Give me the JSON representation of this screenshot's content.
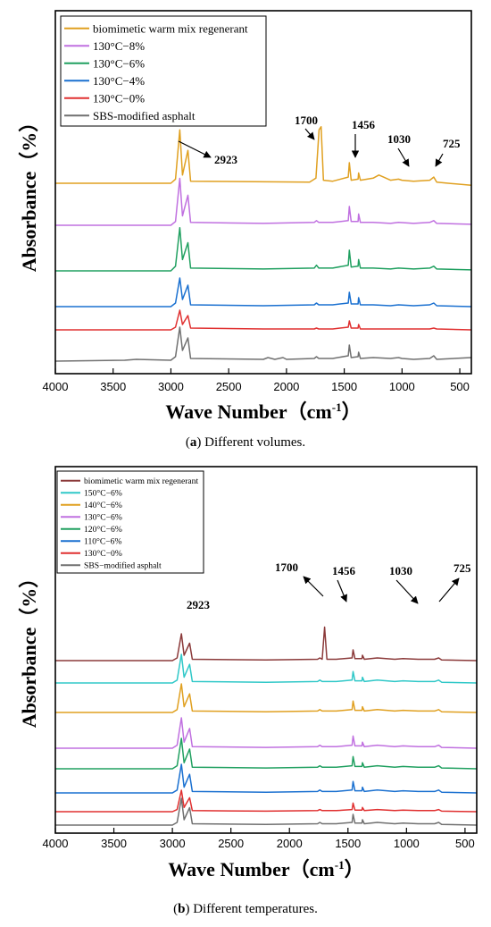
{
  "chart_data": [
    {
      "type": "line",
      "caption_letter": "a",
      "caption_text": " Different volumes.",
      "xlabel": "Wave Number（cm",
      "xlabel_sup": "-1",
      "xlabel_close": "）",
      "ylabel": "Absorbance（%）",
      "xlim": [
        4000,
        400
      ],
      "x_reversed": true,
      "x_ticks": [
        "4000",
        "3500",
        "3000",
        "2500",
        "2000",
        "1500",
        "1000",
        "500"
      ],
      "grid": false,
      "legend_position": "top-left",
      "series": [
        {
          "name": "biomimetic warm mix regenerant",
          "color": "#E0A020",
          "offset": 0.0,
          "x": [
            4000,
            3000,
            2960,
            2923,
            2900,
            2853,
            2830,
            1800,
            1745,
            1718,
            1700,
            1680,
            1600,
            1465,
            1456,
            1440,
            1380,
            1376,
            1360,
            1250,
            1200,
            1160,
            1100,
            1030,
            1000,
            900,
            760,
            725,
            700,
            600,
            400
          ],
          "y": [
            100,
            100,
            104,
            152,
            108,
            132,
            102,
            101,
            105,
            152,
            155,
            103,
            102,
            106,
            120,
            103,
            104,
            110,
            103,
            105,
            108,
            106,
            103,
            104,
            103,
            102,
            103,
            106,
            101,
            100,
            98
          ]
        },
        {
          "name": "130°C−8%",
          "color": "#C070E0",
          "offset": 0.0,
          "x": [
            4000,
            3400,
            3000,
            2960,
            2923,
            2900,
            2853,
            2830,
            2200,
            1760,
            1740,
            1720,
            1600,
            1465,
            1456,
            1440,
            1380,
            1376,
            1360,
            1250,
            1100,
            1030,
            900,
            760,
            725,
            700,
            400
          ],
          "y": [
            100,
            100,
            100,
            104,
            150,
            110,
            132,
            103,
            102,
            103,
            105,
            103,
            103,
            105,
            120,
            104,
            104,
            112,
            103,
            103,
            102,
            103,
            102,
            103,
            105,
            102,
            101
          ]
        },
        {
          "name": "130°C−6%",
          "color": "#20A060",
          "offset": 0.0,
          "x": [
            4000,
            3400,
            3000,
            2960,
            2923,
            2900,
            2853,
            2830,
            2200,
            1760,
            1740,
            1720,
            1600,
            1465,
            1456,
            1440,
            1380,
            1376,
            1360,
            1250,
            1100,
            1030,
            900,
            760,
            725,
            700,
            400
          ],
          "y": [
            100,
            100,
            100,
            105,
            146,
            112,
            130,
            103,
            102,
            103,
            106,
            103,
            103,
            106,
            122,
            104,
            105,
            112,
            103,
            103,
            102,
            103,
            102,
            103,
            105,
            102,
            101
          ]
        },
        {
          "name": "130°C−4%",
          "color": "#1A70D0",
          "offset": 0.0,
          "x": [
            4000,
            3400,
            3000,
            2960,
            2923,
            2900,
            2853,
            2830,
            2200,
            1760,
            1740,
            1720,
            1600,
            1465,
            1456,
            1440,
            1380,
            1376,
            1360,
            1250,
            1100,
            1030,
            900,
            760,
            725,
            700,
            400
          ],
          "y": [
            100,
            100,
            100,
            104,
            132,
            108,
            124,
            102,
            101,
            102,
            104,
            102,
            102,
            104,
            116,
            103,
            103,
            110,
            102,
            102,
            101,
            102,
            101,
            102,
            104,
            101,
            100
          ]
        },
        {
          "name": "130°C−0%",
          "color": "#E03030",
          "offset": 0.0,
          "x": [
            4000,
            3400,
            3000,
            2960,
            2923,
            2900,
            2853,
            2830,
            2200,
            1760,
            1740,
            1720,
            1600,
            1465,
            1456,
            1440,
            1380,
            1376,
            1360,
            1250,
            1100,
            1030,
            900,
            760,
            725,
            700,
            400
          ],
          "y": [
            100,
            100,
            100,
            103,
            122,
            106,
            116,
            102,
            101,
            101,
            102,
            101,
            101,
            103,
            110,
            102,
            102,
            106,
            101,
            101,
            101,
            101,
            101,
            101,
            102,
            101,
            100
          ]
        },
        {
          "name": "SBS-modified asphalt",
          "color": "#707070",
          "offset": 0.0,
          "x": [
            4000,
            3400,
            3300,
            3000,
            2960,
            2923,
            2900,
            2853,
            2830,
            2200,
            2160,
            2100,
            2030,
            2000,
            1760,
            1740,
            1720,
            1600,
            1465,
            1456,
            1440,
            1380,
            1376,
            1360,
            1250,
            1100,
            1030,
            1000,
            900,
            760,
            725,
            700,
            400
          ],
          "y": [
            100,
            101,
            102,
            101,
            105,
            138,
            112,
            126,
            103,
            102,
            104,
            102,
            104,
            102,
            103,
            105,
            103,
            103,
            106,
            118,
            104,
            105,
            110,
            103,
            104,
            103,
            104,
            103,
            102,
            103,
            106,
            102,
            104
          ]
        }
      ],
      "annotations": [
        {
          "text": "2923",
          "x": 2923
        },
        {
          "text": "1700",
          "x": 1700
        },
        {
          "text": "1456",
          "x": 1456
        },
        {
          "text": "1030",
          "x": 1030
        },
        {
          "text": "725",
          "x": 725
        }
      ]
    },
    {
      "type": "line",
      "caption_letter": "b",
      "caption_text": " Different temperatures.",
      "xlabel": "Wave Number（cm",
      "xlabel_sup": "-1",
      "xlabel_close": "）",
      "ylabel": "Absorbance（%）",
      "xlim": [
        4000,
        400
      ],
      "x_reversed": true,
      "x_ticks": [
        "4000",
        "3500",
        "3000",
        "2500",
        "2000",
        "1500",
        "1000",
        "500"
      ],
      "grid": false,
      "legend_position": "top-left",
      "series": [
        {
          "name": "biomimetic warm mix regenerant",
          "color": "#8B3A3A"
        },
        {
          "name": "150°C−6%",
          "color": "#30C8C8"
        },
        {
          "name": "140°C−6%",
          "color": "#E0A020"
        },
        {
          "name": "130°C−6%",
          "color": "#C070E0"
        },
        {
          "name": "120°C−6%",
          "color": "#20A060"
        },
        {
          "name": "110°C−6%",
          "color": "#1A70D0"
        },
        {
          "name": "130°C−0%",
          "color": "#E03030"
        },
        {
          "name": "SBS−modified asphalt",
          "color": "#707070"
        }
      ],
      "annotations": [
        {
          "text": "2923",
          "x": 2923
        },
        {
          "text": "1700",
          "x": 1700
        },
        {
          "text": "1456",
          "x": 1456
        },
        {
          "text": "1030",
          "x": 1030
        },
        {
          "text": "725",
          "x": 725
        }
      ]
    }
  ]
}
